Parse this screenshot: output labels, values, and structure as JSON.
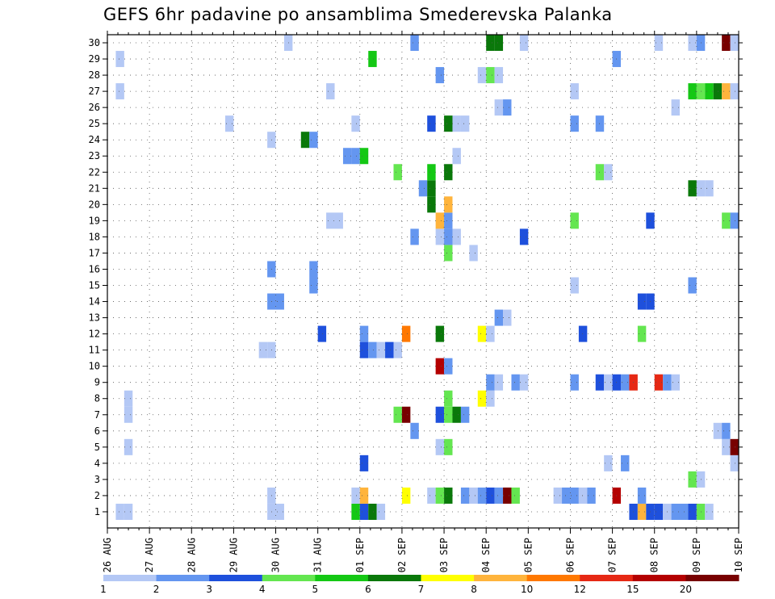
{
  "chart_data": {
    "type": "heatmap",
    "title": "GEFS 6hr padavine po ansamblima Smederevska Palanka",
    "xlabel": "",
    "ylabel": "",
    "x_tick_labels": [
      "26 AUG",
      "27 AUG",
      "28 AUG",
      "29 AUG",
      "30 AUG",
      "31 AUG",
      "01 SEP",
      "02 SEP",
      "03 SEP",
      "04 SEP",
      "05 SEP",
      "06 SEP",
      "07 SEP",
      "08 SEP",
      "09 SEP",
      "10 SEP"
    ],
    "y_tick_labels": [
      "1",
      "2",
      "3",
      "4",
      "5",
      "6",
      "7",
      "8",
      "9",
      "10",
      "11",
      "12",
      "13",
      "14",
      "15",
      "16",
      "17",
      "18",
      "19",
      "20",
      "21",
      "22",
      "23",
      "24",
      "25",
      "26",
      "27",
      "28",
      "29",
      "30"
    ],
    "x_range_days": [
      0,
      15
    ],
    "members": [
      0,
      30
    ],
    "legend_levels": [
      "1",
      "2",
      "3",
      "4",
      "5",
      "6",
      "7",
      "8",
      "10",
      "12",
      "15",
      "20"
    ],
    "legend_colors": [
      "#b4c8f5",
      "#6496f0",
      "#1e50dc",
      "#64e650",
      "#14c814",
      "#0a780a",
      "#ffff00",
      "#ffb43c",
      "#ff7800",
      "#e62814",
      "#b40000",
      "#780000"
    ],
    "cells": [
      [
        0.2,
        1,
        1
      ],
      [
        0.4,
        1,
        1
      ],
      [
        3.8,
        1,
        1
      ],
      [
        4.0,
        1,
        1
      ],
      [
        5.8,
        1,
        5
      ],
      [
        6.0,
        1,
        3
      ],
      [
        6.2,
        1,
        6
      ],
      [
        6.4,
        1,
        1
      ],
      [
        12.4,
        1,
        3
      ],
      [
        12.6,
        1,
        8
      ],
      [
        12.8,
        1,
        3
      ],
      [
        13.0,
        1,
        3
      ],
      [
        13.2,
        1,
        1
      ],
      [
        13.4,
        1,
        2
      ],
      [
        13.6,
        1,
        2
      ],
      [
        13.8,
        1,
        3
      ],
      [
        14.0,
        1,
        4
      ],
      [
        14.2,
        1,
        1
      ],
      [
        3.8,
        2,
        1
      ],
      [
        5.8,
        2,
        1
      ],
      [
        6.0,
        2,
        8
      ],
      [
        7.0,
        2,
        7
      ],
      [
        7.6,
        2,
        1
      ],
      [
        7.8,
        2,
        4
      ],
      [
        8.0,
        2,
        6
      ],
      [
        8.4,
        2,
        2
      ],
      [
        8.6,
        2,
        1
      ],
      [
        8.8,
        2,
        2
      ],
      [
        9.0,
        2,
        3
      ],
      [
        9.2,
        2,
        2
      ],
      [
        9.4,
        2,
        12
      ],
      [
        9.6,
        2,
        4
      ],
      [
        10.6,
        2,
        1
      ],
      [
        10.8,
        2,
        2
      ],
      [
        11.0,
        2,
        2
      ],
      [
        11.2,
        2,
        1
      ],
      [
        11.4,
        2,
        2
      ],
      [
        12.0,
        2,
        11
      ],
      [
        12.6,
        2,
        2
      ],
      [
        13.8,
        3,
        4
      ],
      [
        14.0,
        3,
        1
      ],
      [
        6.0,
        4,
        3
      ],
      [
        11.8,
        4,
        1
      ],
      [
        12.2,
        4,
        2
      ],
      [
        14.8,
        4,
        1
      ],
      [
        0.4,
        5,
        1
      ],
      [
        7.8,
        5,
        1
      ],
      [
        8.0,
        5,
        4
      ],
      [
        14.6,
        5,
        1
      ],
      [
        14.8,
        5,
        12
      ],
      [
        7.2,
        6,
        2
      ],
      [
        14.4,
        6,
        1
      ],
      [
        14.6,
        6,
        2
      ],
      [
        0.4,
        7,
        1
      ],
      [
        6.8,
        7,
        4
      ],
      [
        7.0,
        7,
        12
      ],
      [
        7.8,
        7,
        3
      ],
      [
        8.0,
        7,
        4
      ],
      [
        8.2,
        7,
        6
      ],
      [
        8.4,
        7,
        2
      ],
      [
        0.4,
        8,
        1
      ],
      [
        8.0,
        8,
        4
      ],
      [
        8.8,
        8,
        7
      ],
      [
        9.0,
        8,
        1
      ],
      [
        9.0,
        9,
        2
      ],
      [
        9.2,
        9,
        1
      ],
      [
        9.6,
        9,
        2
      ],
      [
        9.8,
        9,
        1
      ],
      [
        11.0,
        9,
        2
      ],
      [
        11.6,
        9,
        3
      ],
      [
        11.8,
        9,
        1
      ],
      [
        12.0,
        9,
        3
      ],
      [
        12.2,
        9,
        2
      ],
      [
        12.4,
        9,
        10
      ],
      [
        13.0,
        9,
        10
      ],
      [
        13.2,
        9,
        2
      ],
      [
        13.4,
        9,
        1
      ],
      [
        7.8,
        10,
        11
      ],
      [
        8.0,
        10,
        2
      ],
      [
        3.6,
        11,
        1
      ],
      [
        3.8,
        11,
        1
      ],
      [
        6.0,
        11,
        3
      ],
      [
        6.2,
        11,
        2
      ],
      [
        6.4,
        11,
        1
      ],
      [
        6.6,
        11,
        3
      ],
      [
        6.8,
        11,
        1
      ],
      [
        5.0,
        12,
        3
      ],
      [
        6.0,
        12,
        2
      ],
      [
        7.0,
        12,
        9
      ],
      [
        7.8,
        12,
        6
      ],
      [
        8.8,
        12,
        7
      ],
      [
        9.0,
        12,
        1
      ],
      [
        11.2,
        12,
        3
      ],
      [
        12.6,
        12,
        4
      ],
      [
        9.2,
        13,
        2
      ],
      [
        9.4,
        13,
        1
      ],
      [
        3.8,
        14,
        2
      ],
      [
        4.0,
        14,
        2
      ],
      [
        12.6,
        14,
        3
      ],
      [
        12.8,
        14,
        3
      ],
      [
        4.8,
        15,
        2
      ],
      [
        11.0,
        15,
        1
      ],
      [
        13.8,
        15,
        2
      ],
      [
        3.8,
        16,
        2
      ],
      [
        4.8,
        16,
        2
      ],
      [
        8.0,
        17,
        4
      ],
      [
        8.6,
        17,
        1
      ],
      [
        7.2,
        18,
        2
      ],
      [
        7.8,
        18,
        1
      ],
      [
        8.0,
        18,
        2
      ],
      [
        8.2,
        18,
        1
      ],
      [
        9.8,
        18,
        3
      ],
      [
        5.2,
        19,
        1
      ],
      [
        5.4,
        19,
        1
      ],
      [
        7.8,
        19,
        8
      ],
      [
        8.0,
        19,
        2
      ],
      [
        11.0,
        19,
        4
      ],
      [
        12.8,
        19,
        3
      ],
      [
        14.6,
        19,
        4
      ],
      [
        14.8,
        19,
        2
      ],
      [
        7.6,
        20,
        6
      ],
      [
        8.0,
        20,
        8
      ],
      [
        7.4,
        21,
        2
      ],
      [
        7.6,
        21,
        6
      ],
      [
        13.8,
        21,
        6
      ],
      [
        14.0,
        21,
        1
      ],
      [
        14.2,
        21,
        1
      ],
      [
        6.8,
        22,
        4
      ],
      [
        7.6,
        22,
        5
      ],
      [
        8.0,
        22,
        6
      ],
      [
        11.6,
        22,
        4
      ],
      [
        11.8,
        22,
        1
      ],
      [
        5.6,
        23,
        2
      ],
      [
        5.8,
        23,
        2
      ],
      [
        6.0,
        23,
        5
      ],
      [
        8.2,
        23,
        1
      ],
      [
        3.8,
        24,
        1
      ],
      [
        4.6,
        24,
        6
      ],
      [
        4.8,
        24,
        2
      ],
      [
        2.8,
        25,
        1
      ],
      [
        5.8,
        25,
        1
      ],
      [
        7.6,
        25,
        3
      ],
      [
        8.0,
        25,
        6
      ],
      [
        8.2,
        25,
        1
      ],
      [
        8.4,
        25,
        1
      ],
      [
        11.0,
        25,
        2
      ],
      [
        11.6,
        25,
        2
      ],
      [
        9.2,
        26,
        1
      ],
      [
        9.4,
        26,
        2
      ],
      [
        13.4,
        26,
        1
      ],
      [
        0.2,
        27,
        1
      ],
      [
        5.2,
        27,
        1
      ],
      [
        11.0,
        27,
        1
      ],
      [
        13.8,
        27,
        5
      ],
      [
        14.0,
        27,
        4
      ],
      [
        14.2,
        27,
        5
      ],
      [
        14.4,
        27,
        6
      ],
      [
        14.6,
        27,
        8
      ],
      [
        14.8,
        27,
        1
      ],
      [
        7.8,
        28,
        2
      ],
      [
        8.8,
        28,
        1
      ],
      [
        9.0,
        28,
        4
      ],
      [
        9.2,
        28,
        1
      ],
      [
        0.2,
        29,
        1
      ],
      [
        6.2,
        29,
        5
      ],
      [
        12.0,
        29,
        2
      ],
      [
        4.2,
        30,
        1
      ],
      [
        7.2,
        30,
        2
      ],
      [
        9.0,
        30,
        6
      ],
      [
        9.2,
        30,
        6
      ],
      [
        9.8,
        30,
        1
      ],
      [
        13.0,
        30,
        1
      ],
      [
        13.8,
        30,
        1
      ],
      [
        14.0,
        30,
        2
      ],
      [
        14.6,
        30,
        12
      ],
      [
        14.8,
        30,
        1
      ]
    ]
  }
}
